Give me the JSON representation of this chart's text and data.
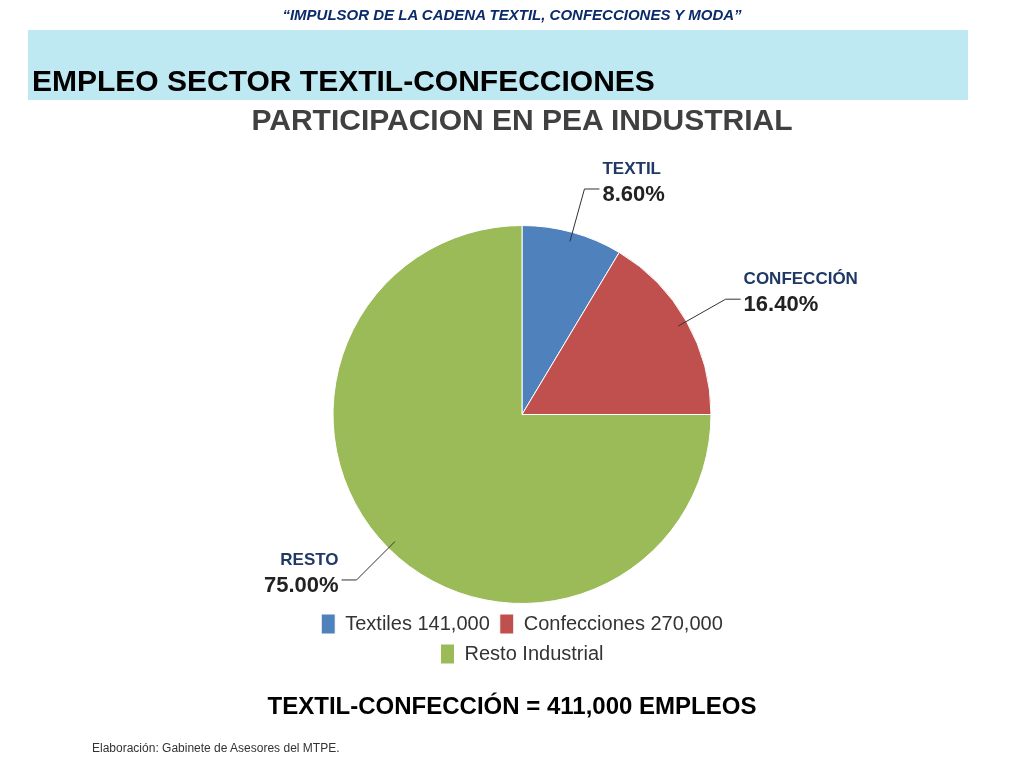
{
  "chart_data": {
    "type": "pie",
    "title": "PARTICIPACION EN PEA INDUSTRIAL",
    "categories": [
      "Textiles 141,000",
      "Confecciones 270,000",
      "Resto Industrial"
    ],
    "values": [
      8.6,
      16.4,
      75.0
    ],
    "colors": [
      "#4f81bd",
      "#c0504d",
      "#9bbb59"
    ],
    "value_labels": [
      "8.60%",
      "16.40%",
      "75.00%"
    ],
    "legend": "bottom",
    "annotations": [
      "“IMPULSOR DE LA CADENA TEXTIL, CONFECCIONES Y MODA”",
      "EMPLEO SECTOR TEXTIL-CONFECCIONES",
      {
        "text": "TEXTIL",
        "x": "Textiles 141,000"
      },
      {
        "text": "CONFECCIÓN",
        "x": "Confecciones 270,000"
      },
      {
        "text": "RESTO",
        "x": "Resto Industrial"
      },
      "TEXTIL-CONFECCIÓN = 411,000 EMPLEOS",
      "Elaboración: Gabinete de Asesores del MTPE."
    ]
  }
}
